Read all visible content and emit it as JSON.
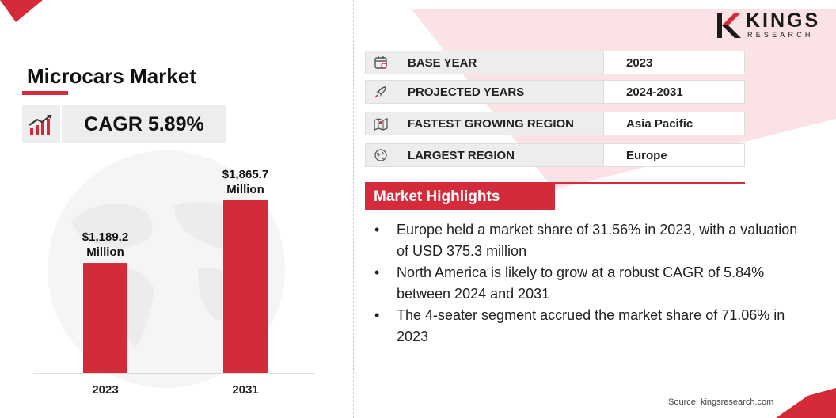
{
  "title": "Microcars Market",
  "cagr": "CAGR 5.89%",
  "brand": {
    "name": "KINGS",
    "tagline": "RESEARCH",
    "accent_color": "#d42b3a"
  },
  "info_rows": [
    {
      "icon": "calendar-icon",
      "label": "BASE YEAR",
      "value": "2023"
    },
    {
      "icon": "rocket-icon",
      "label": "PROJECTED YEARS",
      "value": "2024-2031"
    },
    {
      "icon": "map-icon",
      "label": "FASTEST GROWING REGION",
      "value": "Asia Pacific"
    },
    {
      "icon": "globe-icon",
      "label": "LARGEST REGION",
      "value": "Europe"
    }
  ],
  "highlights": {
    "heading": "Market Highlights",
    "items": [
      "Europe held a market share of 31.56% in 2023, with a valuation of USD 375.3 million",
      "North America is likely to grow at a robust CAGR of 5.84% between 2024 and 2031",
      "The 4-seater segment accrued the market share of 71.06% in 2023"
    ]
  },
  "source": "Source: kingsresearch.com",
  "chart_data": {
    "type": "bar",
    "categories": [
      "2023",
      "2031"
    ],
    "values": [
      1189.2,
      1865.7
    ],
    "data_labels": [
      [
        "$1,189.2",
        "Million"
      ],
      [
        "$1,865.7",
        "Million"
      ]
    ],
    "color": "#d42b3a",
    "grid": false,
    "legend": "none"
  }
}
